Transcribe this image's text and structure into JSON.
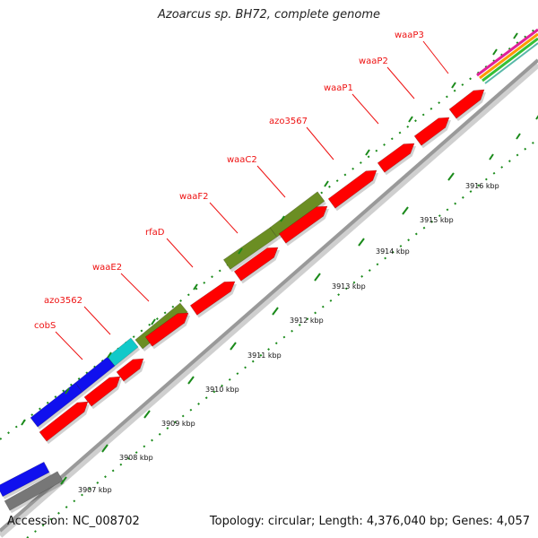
{
  "title": "Azoarcus sp. BH72, complete genome",
  "footer": {
    "accession": "Accession: NC_008702",
    "topology": "Topology: circular; Length: 4,376,040 bp; Genes: 4,057"
  },
  "colors": {
    "gene_red": "#ff0000",
    "gene_olive": "#6b8e23",
    "gene_blue": "#1010ee",
    "gene_cyan": "#11c9c9",
    "gene_gray": "#777777",
    "backbone": "#999999",
    "tick_green": "#1a8a1a",
    "label_red": "#ee1111"
  },
  "gene_labels": [
    {
      "text": "cobS"
    },
    {
      "text": "azo3562"
    },
    {
      "text": "waaE2"
    },
    {
      "text": "rfaD"
    },
    {
      "text": "waaF2"
    },
    {
      "text": "waaC2"
    },
    {
      "text": "azo3567"
    },
    {
      "text": "waaP1"
    },
    {
      "text": "waaP2"
    },
    {
      "text": "waaP3"
    }
  ],
  "scale_ticks": [
    "3907 kbp",
    "3908 kbp",
    "3909 kbp",
    "3910 kbp",
    "3911 kbp",
    "3912 kbp",
    "3913 kbp",
    "3914 kbp",
    "3915 kbp",
    "3916 kbp"
  ]
}
